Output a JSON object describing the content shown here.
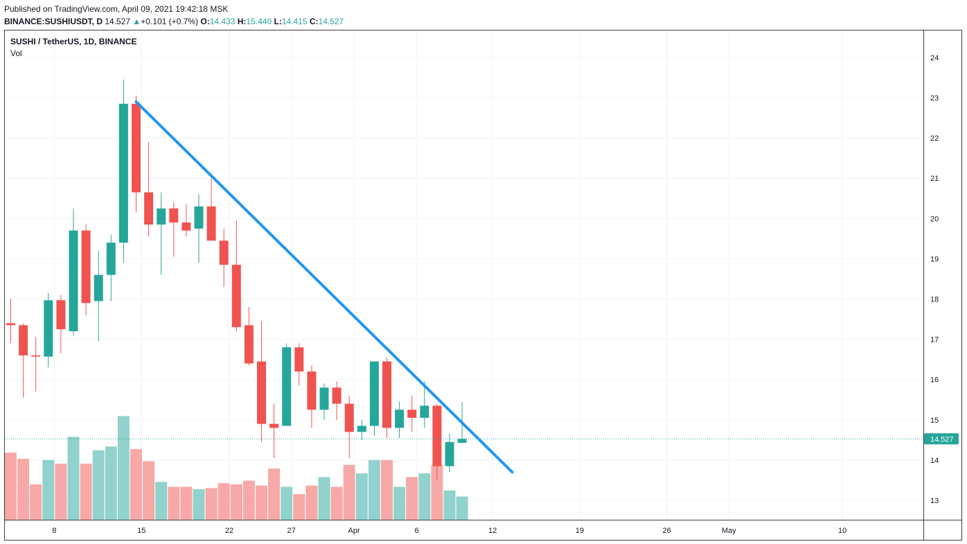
{
  "header": {
    "published": "Published on TradingView.com, April 09, 2021 19:42:18 MSK",
    "symbol": "BINANCE:SUSHIUSDT, D",
    "last": "14.527",
    "change_arrow": "▲",
    "change": "+0.101 (+0.7%)",
    "o_label": "O:",
    "o": "14.433",
    "h_label": "H:",
    "h": "15.440",
    "l_label": "L:",
    "l": "14.415",
    "c_label": "C:",
    "c": "14.527"
  },
  "legend": {
    "title": "SUSHI / TetherUS, 1D, BINANCE",
    "volume_label": "Vol"
  },
  "colors": {
    "up": "#26a69a",
    "down": "#ef5350",
    "up_volume": "#92d2cc",
    "down_volume": "#f7a9a7",
    "trendline": "#2196f3",
    "grid": "#f0f3fa"
  },
  "chart_data": {
    "type": "candlestick",
    "y_axis": {
      "ticks": [
        13,
        14,
        15,
        16,
        17,
        18,
        19,
        20,
        21,
        22,
        23,
        24
      ],
      "range": [
        12.5,
        24.5
      ]
    },
    "x_axis": {
      "ticks": [
        "8",
        "15",
        "22",
        "27",
        "Apr",
        "6",
        "12",
        "19",
        "26",
        "May",
        "10"
      ]
    },
    "last_price_label": "14.527",
    "candles": [
      {
        "o": 17.4,
        "h": 18.0,
        "l": 16.9,
        "c": 17.35
      },
      {
        "o": 17.35,
        "h": 17.4,
        "l": 15.55,
        "c": 16.6
      },
      {
        "o": 16.6,
        "h": 17.05,
        "l": 15.7,
        "c": 16.57
      },
      {
        "o": 16.57,
        "h": 18.15,
        "l": 16.3,
        "c": 17.97
      },
      {
        "o": 17.97,
        "h": 18.1,
        "l": 16.65,
        "c": 17.25
      },
      {
        "o": 17.2,
        "h": 20.25,
        "l": 17.1,
        "c": 19.7
      },
      {
        "o": 19.7,
        "h": 19.85,
        "l": 17.6,
        "c": 17.9
      },
      {
        "o": 17.95,
        "h": 19.2,
        "l": 16.95,
        "c": 18.6
      },
      {
        "o": 18.6,
        "h": 19.6,
        "l": 17.95,
        "c": 19.4
      },
      {
        "o": 19.4,
        "h": 23.45,
        "l": 18.9,
        "c": 22.85
      },
      {
        "o": 22.85,
        "h": 23.05,
        "l": 20.15,
        "c": 20.65
      },
      {
        "o": 20.65,
        "h": 21.9,
        "l": 19.55,
        "c": 19.85
      },
      {
        "o": 19.85,
        "h": 20.65,
        "l": 18.6,
        "c": 20.25
      },
      {
        "o": 20.25,
        "h": 20.4,
        "l": 19.05,
        "c": 19.9
      },
      {
        "o": 19.9,
        "h": 20.35,
        "l": 19.55,
        "c": 19.7
      },
      {
        "o": 19.75,
        "h": 20.6,
        "l": 18.9,
        "c": 20.3
      },
      {
        "o": 20.3,
        "h": 21.0,
        "l": 19.45,
        "c": 19.45
      },
      {
        "o": 19.45,
        "h": 19.75,
        "l": 18.3,
        "c": 18.85
      },
      {
        "o": 18.85,
        "h": 19.95,
        "l": 17.2,
        "c": 17.3
      },
      {
        "o": 17.35,
        "h": 17.8,
        "l": 16.35,
        "c": 16.4
      },
      {
        "o": 16.45,
        "h": 17.45,
        "l": 14.45,
        "c": 14.9
      },
      {
        "o": 14.9,
        "h": 15.4,
        "l": 14.05,
        "c": 14.8
      },
      {
        "o": 14.85,
        "h": 16.9,
        "l": 14.85,
        "c": 16.8
      },
      {
        "o": 16.8,
        "h": 16.9,
        "l": 15.85,
        "c": 16.2
      },
      {
        "o": 16.2,
        "h": 16.35,
        "l": 14.8,
        "c": 15.25
      },
      {
        "o": 15.25,
        "h": 15.9,
        "l": 15.0,
        "c": 15.8
      },
      {
        "o": 15.8,
        "h": 15.95,
        "l": 15.0,
        "c": 15.4
      },
      {
        "o": 15.4,
        "h": 15.6,
        "l": 14.05,
        "c": 14.7
      },
      {
        "o": 14.7,
        "h": 15.0,
        "l": 14.5,
        "c": 14.85
      },
      {
        "o": 14.85,
        "h": 16.45,
        "l": 14.6,
        "c": 16.45
      },
      {
        "o": 16.45,
        "h": 16.55,
        "l": 14.55,
        "c": 14.8
      },
      {
        "o": 14.8,
        "h": 15.45,
        "l": 14.55,
        "c": 15.25
      },
      {
        "o": 15.25,
        "h": 15.6,
        "l": 14.7,
        "c": 15.05
      },
      {
        "o": 15.05,
        "h": 15.95,
        "l": 14.8,
        "c": 15.35
      },
      {
        "o": 15.35,
        "h": 15.4,
        "l": 13.5,
        "c": 13.85
      },
      {
        "o": 13.85,
        "h": 14.65,
        "l": 13.7,
        "c": 14.45
      },
      {
        "o": 14.43,
        "h": 15.44,
        "l": 14.415,
        "c": 14.527
      }
    ],
    "volume_relative": [
      0.55,
      0.5,
      0.29,
      0.49,
      0.46,
      0.68,
      0.46,
      0.57,
      0.6,
      0.85,
      0.58,
      0.48,
      0.31,
      0.27,
      0.27,
      0.25,
      0.26,
      0.3,
      0.29,
      0.32,
      0.28,
      0.42,
      0.27,
      0.21,
      0.28,
      0.35,
      0.27,
      0.45,
      0.38,
      0.49,
      0.49,
      0.27,
      0.35,
      0.38,
      0.45,
      0.24,
      0.19
    ],
    "trendline": {
      "start": {
        "candle_index": 10,
        "price": 22.9
      },
      "end": {
        "candle_index": 40,
        "price": 13.7
      }
    }
  }
}
